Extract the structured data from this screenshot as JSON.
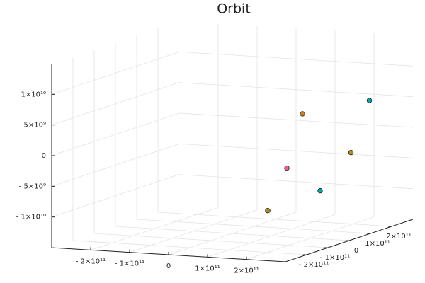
{
  "chart_data": {
    "type": "scatter3d",
    "title": "Orbit",
    "xlim": [
      -300000000000,
      300000000000
    ],
    "ylim": [
      -300000000000,
      300000000000
    ],
    "zlim": [
      -15000000000,
      15000000000
    ],
    "xticks": [
      {
        "value": -200000000000,
        "label": "- 2×10¹¹"
      },
      {
        "value": -100000000000,
        "label": "- 1×10¹¹"
      },
      0,
      {
        "value": 100000000000,
        "label": "1×10¹¹"
      },
      {
        "value": 200000000000,
        "label": "2×10¹¹"
      }
    ],
    "yticks": [
      {
        "value": -200000000000,
        "label": "- 2×10¹¹"
      },
      {
        "value": -100000000000,
        "label": "- 1×10¹¹"
      },
      0,
      {
        "value": 100000000000,
        "label": "1×10¹¹"
      },
      {
        "value": 200000000000,
        "label": "2×10¹¹"
      }
    ],
    "zticks": [
      {
        "value": -10000000000,
        "label": "- 1×10¹⁰"
      },
      {
        "value": -5000000000,
        "label": "- 5×10⁹"
      },
      0,
      {
        "value": 5000000000,
        "label": "5×10⁹"
      },
      {
        "value": 10000000000,
        "label": "1×10¹⁰"
      }
    ],
    "grid": true,
    "points": {
      "x": [
        140000000000,
        180000000000,
        250000000000,
        270000000000,
        280000000000,
        200000000000
      ],
      "y": [
        0,
        0,
        100000000000,
        150000000000,
        -100000000000,
        -200000000000
      ],
      "z": [
        -3800000000,
        5200000000,
        -2000000000,
        6000000000,
        -5800000000,
        -8200000000
      ],
      "colors": [
        "#ED5E93",
        "#C68225",
        "#AC8E18",
        "#00A9AD",
        "#00A9AD",
        "#AC8E18"
      ]
    }
  }
}
